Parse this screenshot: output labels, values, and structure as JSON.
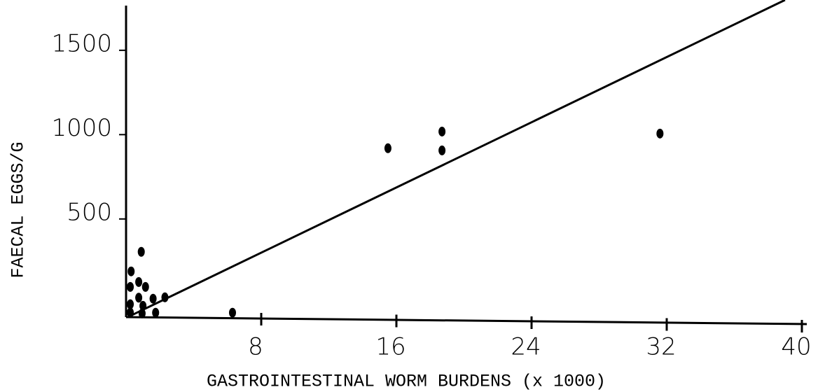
{
  "chart_data": {
    "type": "scatter",
    "x_label": "GASTROINTESTINAL WORM BURDENS  (x 1000)",
    "y_label": "FAECAL EGGS/G",
    "xlim": [
      0,
      40
    ],
    "ylim": [
      -115,
      1765
    ],
    "xticks": [
      8,
      16,
      24,
      32,
      40
    ],
    "yticks": [
      500,
      1000,
      1500
    ],
    "series": [
      {
        "mode": "markers",
        "color": "#000000",
        "x": [
          0.3,
          0.25,
          0.25,
          0.25,
          0.9,
          0.75,
          1.15,
          0.75,
          1.0,
          0.95,
          1.6,
          1.75,
          2.3,
          6.3,
          15.5,
          18.7,
          18.7,
          31.6
        ],
        "values": [
          156,
          64,
          -39,
          -88,
          272,
          93,
          64,
          0,
          -48,
          -93,
          -6,
          -89,
          2,
          -89,
          886,
          985,
          873,
          973
        ]
      },
      {
        "mode": "line",
        "color": "#000000",
        "x": [
          0.2,
          39
        ],
        "values": [
          -110,
          1765
        ]
      }
    ]
  }
}
